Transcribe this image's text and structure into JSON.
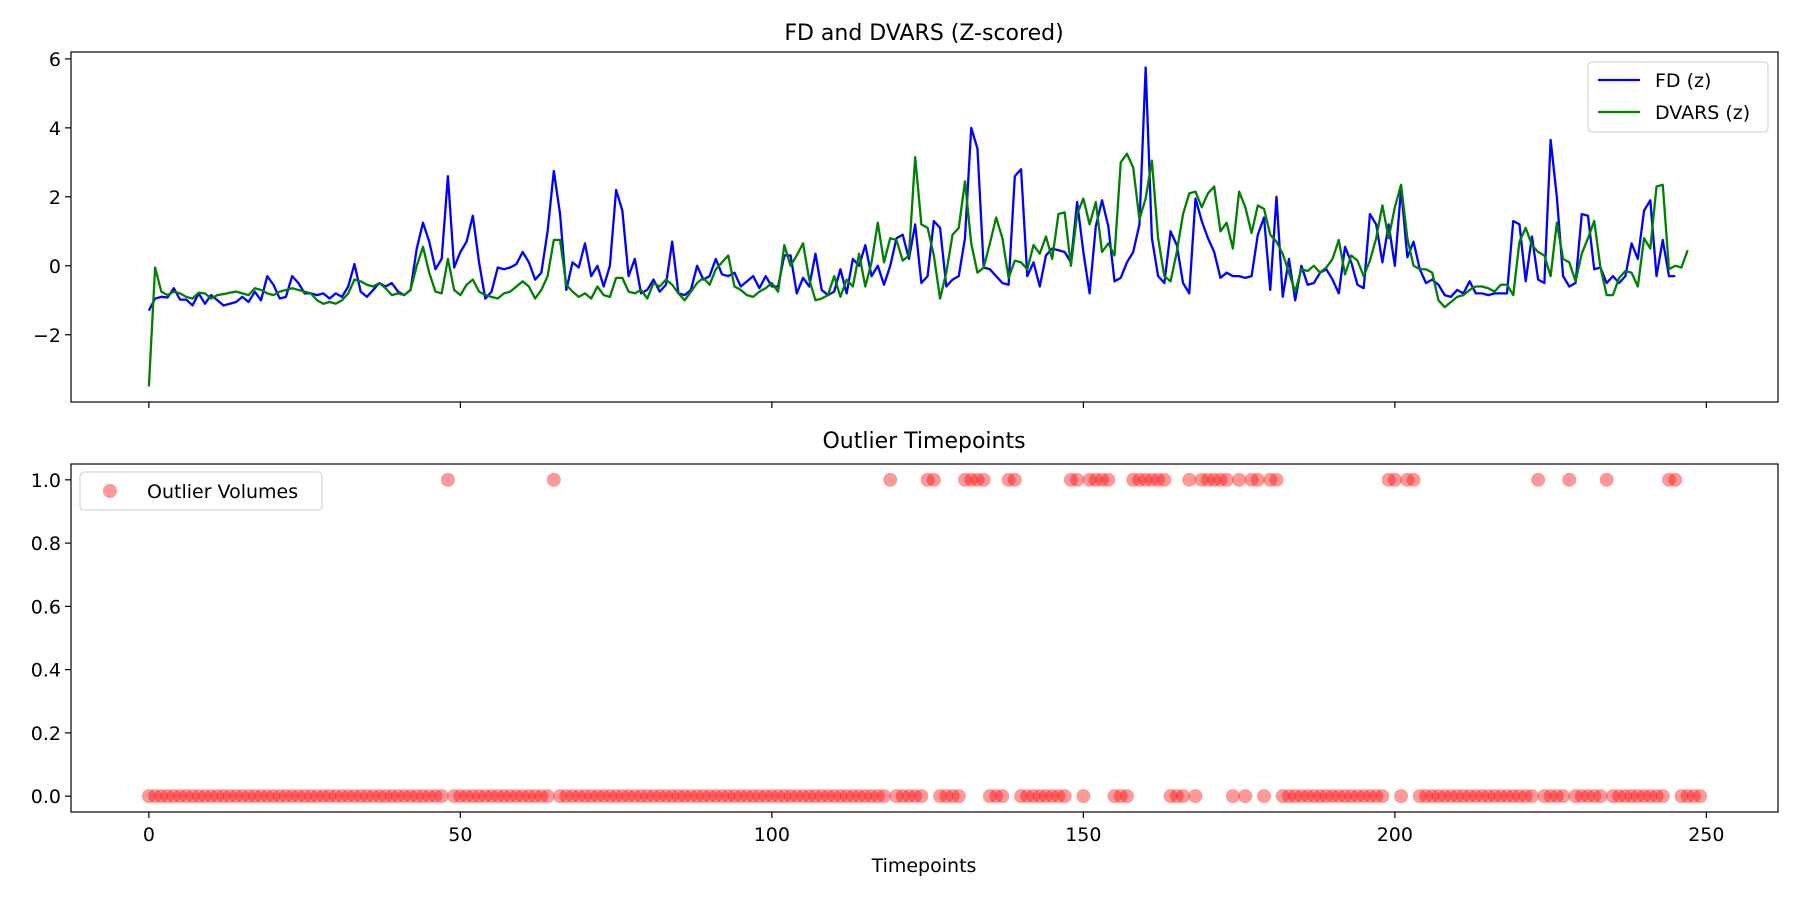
{
  "chart_data": [
    {
      "type": "line",
      "title": "FD and DVARS (Z-scored)",
      "xlabel": "",
      "ylabel": "",
      "xlim": [
        -12.5,
        261.5
      ],
      "ylim": [
        -3.95,
        6.2
      ],
      "x_ticks": [
        0,
        50,
        100,
        150,
        200,
        250
      ],
      "y_ticks": [
        -2,
        0,
        2,
        4,
        6
      ],
      "y_tick_labels": [
        "−2",
        "0",
        "2",
        "4",
        "6"
      ],
      "legend_position": "top-right",
      "series": [
        {
          "name": "FD (z)",
          "color": "#0000ff",
          "values": [
            -1.3,
            -0.95,
            -0.9,
            -0.92,
            -0.65,
            -0.98,
            -0.98,
            -1.15,
            -0.8,
            -1.1,
            -0.85,
            -1.0,
            -1.15,
            -1.1,
            -1.05,
            -0.9,
            -1.05,
            -0.75,
            -1.0,
            -0.3,
            -0.55,
            -0.95,
            -0.9,
            -0.3,
            -0.5,
            -0.8,
            -0.8,
            -0.85,
            -0.8,
            -0.95,
            -0.8,
            -0.9,
            -0.6,
            0.05,
            -0.75,
            -0.9,
            -0.7,
            -0.5,
            -0.6,
            -0.5,
            -0.75,
            -0.85,
            -0.7,
            0.5,
            1.25,
            0.7,
            -0.1,
            0.2,
            2.6,
            -0.05,
            0.4,
            0.7,
            1.45,
            0.1,
            -0.95,
            -0.75,
            -0.05,
            -0.1,
            -0.05,
            0.05,
            0.4,
            0.1,
            -0.4,
            -0.2,
            1.0,
            2.75,
            1.5,
            -0.7,
            0.1,
            -0.05,
            0.65,
            -0.3,
            0.0,
            -0.6,
            0.0,
            2.2,
            1.6,
            -0.3,
            0.2,
            -0.8,
            -0.7,
            -0.4,
            -0.75,
            -0.55,
            0.7,
            -0.8,
            -0.85,
            -0.7,
            0.0,
            -0.4,
            -0.3,
            0.2,
            -0.25,
            -0.3,
            -0.2,
            -0.6,
            -0.45,
            -0.3,
            -0.65,
            -0.3,
            -0.6,
            -0.6,
            0.3,
            0.3,
            -0.8,
            -0.35,
            -0.6,
            0.35,
            -0.7,
            -0.85,
            -0.75,
            -0.1,
            -0.8,
            0.2,
            0.0,
            0.6,
            -0.3,
            0.0,
            -0.55,
            0.0,
            0.8,
            0.9,
            0.2,
            1.2,
            -0.5,
            -0.3,
            1.3,
            1.1,
            -0.6,
            -0.4,
            -0.3,
            0.8,
            4.0,
            3.4,
            -0.05,
            -0.1,
            -0.3,
            -0.5,
            -0.55,
            2.6,
            2.8,
            -0.3,
            0.1,
            -0.6,
            0.3,
            0.5,
            0.45,
            0.4,
            0.1,
            1.85,
            0.4,
            -0.8,
            1.15,
            1.9,
            1.15,
            -0.45,
            -0.35,
            0.1,
            0.4,
            1.2,
            5.75,
            0.8,
            -0.3,
            -0.5,
            1.0,
            0.6,
            -0.5,
            -0.8,
            1.95,
            1.3,
            0.8,
            0.4,
            -0.35,
            -0.2,
            -0.3,
            -0.3,
            -0.35,
            -0.3,
            0.9,
            1.4,
            -0.7,
            2.0,
            -0.9,
            0.2,
            -1.0,
            0.0,
            -0.55,
            -0.5,
            -0.2,
            -0.1,
            -0.4,
            -0.8,
            0.55,
            0.1,
            -0.55,
            -0.65,
            1.5,
            1.2,
            0.1,
            1.2,
            0.0,
            2.25,
            0.25,
            0.7,
            -0.1,
            -0.5,
            -0.4,
            -0.55,
            -0.85,
            -0.9,
            -0.7,
            -0.8,
            -0.45,
            -0.8,
            -0.8,
            -0.85,
            -0.8,
            -0.8,
            -0.8,
            1.3,
            1.2,
            -0.45,
            0.85,
            -0.4,
            -0.5,
            3.65,
            2.0,
            -0.3,
            -0.6,
            -0.5,
            1.5,
            1.45,
            -0.1,
            -0.05,
            -0.5,
            -0.3,
            -0.5,
            -0.3,
            0.65,
            0.2,
            1.6,
            1.9,
            -0.3,
            0.75,
            -0.3,
            -0.3
          ]
        },
        {
          "name": "DVARS (z)",
          "color": "#008000",
          "values": [
            -3.5,
            -0.05,
            -0.75,
            -0.85,
            -0.75,
            -0.8,
            -0.9,
            -0.95,
            -0.78,
            -0.8,
            -0.95,
            -0.85,
            -0.82,
            -0.78,
            -0.75,
            -0.8,
            -0.85,
            -0.65,
            -0.7,
            -0.8,
            -0.85,
            -0.75,
            -0.7,
            -0.65,
            -0.7,
            -0.75,
            -0.8,
            -1.0,
            -1.1,
            -1.05,
            -1.1,
            -1.0,
            -0.8,
            -0.4,
            -0.45,
            -0.55,
            -0.6,
            -0.5,
            -0.65,
            -0.85,
            -0.8,
            -0.85,
            -0.7,
            0.0,
            0.55,
            -0.2,
            -0.75,
            -0.8,
            0.2,
            -0.7,
            -0.85,
            -0.55,
            -0.4,
            -0.75,
            -0.85,
            -0.9,
            -0.95,
            -0.8,
            -0.75,
            -0.6,
            -0.45,
            -0.6,
            -0.95,
            -0.7,
            -0.3,
            0.75,
            0.75,
            -0.55,
            -0.75,
            -0.9,
            -0.8,
            -0.95,
            -0.6,
            -0.85,
            -0.9,
            -0.35,
            -0.35,
            -0.75,
            -0.8,
            -0.7,
            -0.95,
            -0.5,
            -0.6,
            -0.4,
            -0.55,
            -0.8,
            -1.0,
            -0.75,
            -0.5,
            -0.35,
            -0.55,
            -0.1,
            0.1,
            0.3,
            -0.6,
            -0.7,
            -0.85,
            -0.9,
            -0.75,
            -0.65,
            -0.5,
            -0.75,
            0.6,
            0.0,
            0.3,
            0.65,
            -0.4,
            -1.0,
            -0.95,
            -0.85,
            -0.3,
            -0.9,
            -0.4,
            -0.6,
            0.35,
            -0.6,
            0.1,
            1.25,
            0.1,
            0.8,
            0.75,
            0.15,
            0.3,
            3.15,
            1.2,
            1.1,
            0.3,
            -0.95,
            -0.2,
            0.9,
            1.1,
            2.45,
            0.65,
            -0.2,
            -0.05,
            0.65,
            1.4,
            0.8,
            -0.35,
            0.15,
            0.1,
            -0.1,
            0.6,
            0.35,
            0.85,
            0.2,
            1.5,
            1.55,
            0.0,
            1.5,
            1.95,
            1.2,
            1.85,
            0.4,
            0.65,
            0.3,
            3.0,
            3.25,
            2.85,
            1.35,
            1.95,
            3.05,
            0.8,
            -0.3,
            -0.45,
            0.4,
            1.5,
            2.1,
            2.15,
            1.7,
            2.1,
            2.3,
            1.0,
            1.25,
            0.5,
            2.15,
            1.7,
            0.95,
            1.75,
            1.65,
            0.9,
            0.7,
            0.35,
            -0.2,
            -0.75,
            -0.1,
            -0.15,
            0.0,
            -0.2,
            -0.05,
            0.2,
            0.75,
            -0.25,
            0.3,
            0.15,
            -0.3,
            0.15,
            0.8,
            1.75,
            0.8,
            1.7,
            2.35,
            0.8,
            0.0,
            -0.1,
            -0.1,
            -0.2,
            -1.0,
            -1.2,
            -1.05,
            -0.9,
            -0.85,
            -0.7,
            -0.6,
            -0.6,
            -0.65,
            -0.75,
            -0.55,
            -0.55,
            -0.85,
            0.7,
            1.1,
            0.6,
            0.4,
            0.3,
            -0.3,
            1.25,
            0.2,
            0.1,
            -0.45,
            0.35,
            0.8,
            1.3,
            -0.05,
            -0.85,
            -0.85,
            -0.35,
            -0.15,
            -0.2,
            -0.6,
            0.8,
            0.5,
            2.3,
            2.35,
            -0.1,
            0.0,
            -0.05,
            0.45
          ]
        }
      ]
    },
    {
      "type": "scatter",
      "title": "Outlier Timepoints",
      "xlabel": "Timepoints",
      "ylabel": "",
      "xlim": [
        -12.5,
        261.5
      ],
      "ylim": [
        -0.05,
        1.05
      ],
      "x_ticks": [
        0,
        50,
        100,
        150,
        200,
        250
      ],
      "y_ticks": [
        0.0,
        0.2,
        0.4,
        0.6,
        0.8,
        1.0
      ],
      "y_tick_labels": [
        "0.0",
        "0.2",
        "0.4",
        "0.6",
        "0.8",
        "1.0"
      ],
      "legend_position": "top-left",
      "series": [
        {
          "name": "Outlier Volumes",
          "color": "#ff0000",
          "n_timepoints": 250,
          "outlier_indices": [
            48,
            65,
            119,
            125,
            126,
            131,
            132,
            133,
            134,
            138,
            139,
            148,
            149,
            151,
            152,
            153,
            154,
            158,
            159,
            160,
            161,
            162,
            163,
            167,
            169,
            170,
            171,
            172,
            173,
            175,
            177,
            178,
            180,
            181,
            199,
            200,
            202,
            203,
            223,
            228,
            234,
            244,
            245
          ]
        }
      ]
    }
  ]
}
